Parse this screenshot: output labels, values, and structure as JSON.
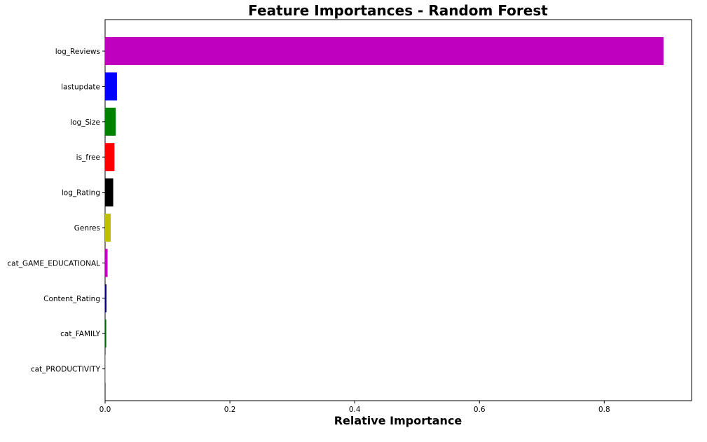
{
  "chart_data": {
    "type": "bar",
    "orientation": "horizontal",
    "title": "Feature Importances - Random Forest",
    "xlabel": "Relative Importance",
    "ylabel": "",
    "xlim": [
      0,
      0.94
    ],
    "xticks": [
      0.0,
      0.2,
      0.4,
      0.6,
      0.8
    ],
    "xtick_labels": [
      "0.0",
      "0.2",
      "0.4",
      "0.6",
      "0.8"
    ],
    "grid": false,
    "categories": [
      "log_Reviews",
      "lastupdate",
      "log_Size",
      "is_free",
      "log_Rating",
      "Genres",
      "cat_GAME_EDUCATIONAL",
      "Content_Rating",
      "cat_FAMILY",
      "cat_PRODUCTIVITY"
    ],
    "values": [
      0.895,
      0.019,
      0.017,
      0.015,
      0.013,
      0.009,
      0.004,
      0.0022,
      0.0018,
      0.0006
    ],
    "colors": [
      "#bf00bf",
      "#0000ff",
      "#008000",
      "#ff0000",
      "#000000",
      "#bfbf00",
      "#bf00bf",
      "#000080",
      "#006400",
      "#808080"
    ]
  }
}
